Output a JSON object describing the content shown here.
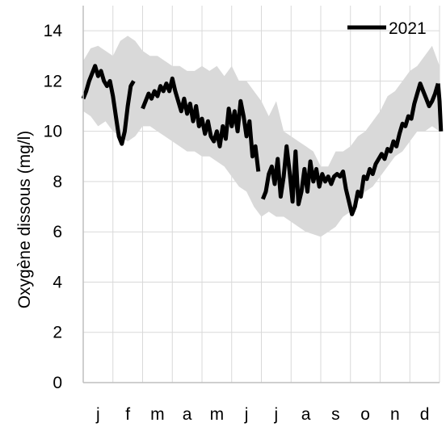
{
  "chart_data": {
    "type": "line",
    "ylabel": "Oxygène dissous (mg/l)",
    "xlabel": "",
    "title": "",
    "ylim": [
      0,
      15
    ],
    "yticks": [
      0,
      2,
      4,
      6,
      8,
      10,
      12,
      14
    ],
    "xlim": [
      0,
      12
    ],
    "months": [
      "j",
      "f",
      "m",
      "a",
      "m",
      "j",
      "j",
      "a",
      "s",
      "o",
      "n",
      "d"
    ],
    "grid": true,
    "legend_position": "top-right",
    "colors": {
      "series": "#000000",
      "band": "#d9d9d9",
      "grid": "#d9d9d9",
      "axis": "#bfbfbf"
    },
    "band": {
      "x": [
        0,
        0.25,
        0.5,
        0.75,
        1.0,
        1.25,
        1.5,
        1.75,
        2.0,
        2.25,
        2.5,
        2.75,
        3.0,
        3.25,
        3.5,
        3.75,
        4.0,
        4.25,
        4.5,
        4.75,
        5.0,
        5.25,
        5.5,
        5.75,
        6.0,
        6.25,
        6.5,
        6.75,
        7.0,
        7.25,
        7.5,
        7.75,
        8.0,
        8.25,
        8.5,
        8.75,
        9.0,
        9.25,
        9.5,
        9.75,
        10.0,
        10.25,
        10.5,
        10.75,
        11.0,
        11.25,
        11.5,
        11.75,
        12.0
      ],
      "upper": [
        12.8,
        13.3,
        13.4,
        13.2,
        13.0,
        13.6,
        13.8,
        13.6,
        13.2,
        13.0,
        13.0,
        12.8,
        12.6,
        12.6,
        12.4,
        12.4,
        12.6,
        12.4,
        12.6,
        12.2,
        12.6,
        12.0,
        12.0,
        11.6,
        11.2,
        10.6,
        11.2,
        10.0,
        9.8,
        9.6,
        9.4,
        9.2,
        8.6,
        8.6,
        9.2,
        9.2,
        9.4,
        9.8,
        10.0,
        10.4,
        10.8,
        11.4,
        11.6,
        12.0,
        12.4,
        12.6,
        13.0,
        13.4,
        12.6
      ],
      "lower": [
        10.8,
        10.6,
        10.2,
        10.4,
        10.0,
        9.8,
        9.6,
        9.8,
        10.2,
        10.2,
        10.0,
        9.8,
        9.6,
        9.4,
        9.2,
        9.2,
        9.0,
        9.0,
        8.8,
        8.6,
        8.2,
        7.8,
        7.6,
        7.0,
        6.6,
        6.8,
        6.6,
        6.6,
        6.4,
        6.2,
        6.0,
        5.9,
        5.8,
        6.0,
        6.2,
        6.6,
        6.8,
        7.2,
        7.6,
        7.8,
        8.2,
        8.6,
        9.0,
        9.2,
        9.6,
        10.0,
        10.0,
        10.2,
        10.0
      ]
    },
    "series": [
      {
        "name": "2021",
        "segments": [
          {
            "x": [
              0,
              0.1,
              0.2,
              0.3,
              0.4,
              0.5,
              0.6,
              0.7,
              0.8,
              0.9,
              1.0,
              1.1,
              1.2,
              1.3,
              1.4,
              1.5,
              1.6,
              1.7
            ],
            "y": [
              11.3,
              11.6,
              12.0,
              12.3,
              12.6,
              12.2,
              12.4,
              12.0,
              11.8,
              12.0,
              11.4,
              10.6,
              9.8,
              9.5,
              10.0,
              11.0,
              11.8,
              12.0
            ]
          },
          {
            "x": [
              2.0,
              2.1,
              2.2,
              2.3,
              2.4,
              2.5,
              2.6,
              2.7,
              2.8,
              2.9,
              3.0,
              3.1,
              3.2,
              3.3,
              3.4,
              3.5,
              3.6,
              3.7,
              3.8,
              3.9,
              4.0,
              4.1,
              4.2,
              4.3,
              4.4,
              4.5,
              4.6,
              4.7,
              4.8,
              4.9,
              5.0,
              5.1,
              5.2,
              5.3,
              5.4,
              5.5,
              5.6,
              5.7,
              5.8,
              5.9
            ],
            "y": [
              10.9,
              11.2,
              11.5,
              11.3,
              11.6,
              11.4,
              11.8,
              11.6,
              11.9,
              11.6,
              12.1,
              11.6,
              11.2,
              10.8,
              11.3,
              10.7,
              11.1,
              10.4,
              11.0,
              10.2,
              10.5,
              9.9,
              10.4,
              9.8,
              9.6,
              10.0,
              9.4,
              10.2,
              9.7,
              10.9,
              10.2,
              10.8,
              10.0,
              11.2,
              10.6,
              9.8,
              10.4,
              9.0,
              9.4,
              8.4
            ]
          },
          {
            "x": [
              6.05,
              6.15,
              6.25,
              6.35,
              6.45,
              6.55,
              6.65,
              6.75,
              6.85,
              6.95,
              7.05,
              7.15,
              7.25,
              7.35,
              7.45,
              7.55,
              7.65,
              7.75,
              7.85,
              7.95,
              8.05,
              8.15,
              8.25,
              8.35,
              8.45,
              8.55,
              8.65,
              8.75,
              8.85,
              8.95,
              9.05,
              9.15,
              9.25,
              9.35,
              9.45,
              9.55,
              9.65,
              9.75,
              9.85,
              9.95,
              10.05,
              10.15,
              10.25,
              10.35,
              10.45,
              10.55,
              10.65,
              10.75,
              10.85,
              10.95,
              11.05,
              11.15,
              11.25,
              11.35,
              11.45,
              11.55,
              11.65,
              11.75,
              11.85,
              11.95
            ],
            "y": [
              7.3,
              7.6,
              8.3,
              8.6,
              7.9,
              8.9,
              7.4,
              8.2,
              9.4,
              8.4,
              7.2,
              9.2,
              7.1,
              7.6,
              8.5,
              7.6,
              8.8,
              8.0,
              8.5,
              7.8,
              8.3,
              8.0,
              8.2,
              7.9,
              8.2,
              8.3,
              8.2,
              8.4,
              7.7,
              7.2,
              6.7,
              7.0,
              7.6,
              7.4,
              8.2,
              8.1,
              8.5,
              8.3,
              8.7,
              8.9,
              9.1,
              8.9,
              9.3,
              9.2,
              9.6,
              9.4,
              9.9,
              10.3,
              10.2,
              10.6,
              10.5,
              11.1,
              11.5,
              11.9,
              11.6,
              11.3,
              11.0,
              11.2,
              11.5,
              11.9
            ]
          },
          {
            "x": [
              11.95,
              12.0,
              12.05
            ],
            "y": [
              11.9,
              11.2,
              10.0
            ]
          }
        ]
      }
    ]
  }
}
